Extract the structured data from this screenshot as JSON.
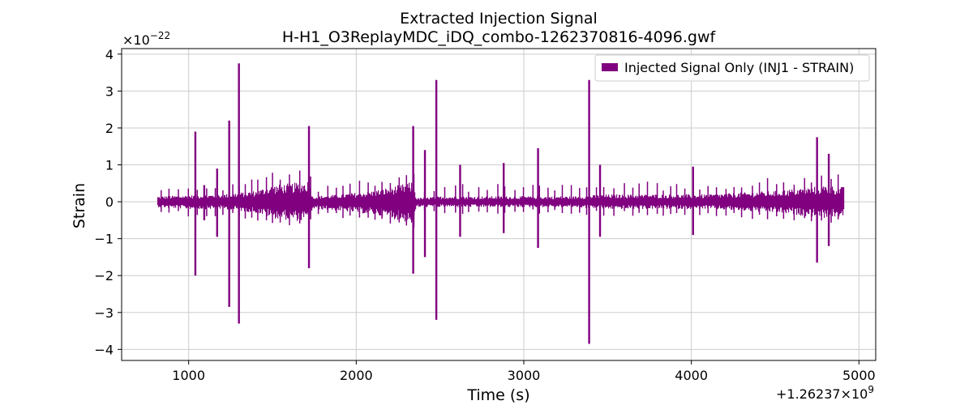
{
  "chart_data": {
    "type": "line",
    "title": "Extracted Injection Signal",
    "subtitle": "H-H1_O3ReplayMDC_iDQ_combo-1262370816-4096.gwf",
    "xlabel": "Time (s)",
    "ylabel": "Strain",
    "x_offset_label": "+1.26237×10",
    "x_offset_exp": "9",
    "y_scale_label": "×10",
    "y_scale_exp": "−22",
    "xlim": [
      600,
      5100
    ],
    "ylim": [
      -4.3,
      4.15
    ],
    "x_ticks": [
      1000,
      2000,
      3000,
      4000,
      5000
    ],
    "x_tick_labels": [
      "1000",
      "2000",
      "3000",
      "4000",
      "5000"
    ],
    "y_ticks": [
      4,
      3,
      2,
      1,
      0,
      -1,
      -2,
      -3,
      -4
    ],
    "y_tick_labels": [
      "4",
      "3",
      "2",
      "1",
      "0",
      "−1",
      "−2",
      "−3",
      "−4"
    ],
    "grid": true,
    "legend_position": "top-right",
    "color": "#800080",
    "series": [
      {
        "name": "Injected Signal Only (INJ1 - STRAIN)",
        "x_range": [
          816,
          4912
        ],
        "envelope": {
          "x": [
            816,
            1000,
            1200,
            1400,
            1500,
            1600,
            1700,
            1718,
            1740,
            1900,
            2000,
            2100,
            2200,
            2300,
            2340,
            2360,
            2500,
            2700,
            2900,
            3100,
            3300,
            3500,
            3700,
            3900,
            4100,
            4300,
            4500,
            4700,
            4800,
            4912
          ],
          "upper": [
            0.15,
            0.18,
            0.2,
            0.3,
            0.45,
            0.5,
            0.55,
            0.6,
            0.15,
            0.2,
            0.25,
            0.3,
            0.4,
            0.5,
            0.55,
            0.1,
            0.15,
            0.15,
            0.15,
            0.15,
            0.15,
            0.2,
            0.2,
            0.2,
            0.2,
            0.25,
            0.3,
            0.4,
            0.45,
            0.4
          ],
          "lower": [
            -0.15,
            -0.2,
            -0.2,
            -0.3,
            -0.45,
            -0.5,
            -0.55,
            -0.6,
            -0.2,
            -0.25,
            -0.3,
            -0.35,
            -0.45,
            -0.55,
            -0.6,
            -0.15,
            -0.15,
            -0.15,
            -0.15,
            -0.15,
            -0.15,
            -0.2,
            -0.2,
            -0.2,
            -0.2,
            -0.25,
            -0.3,
            -0.4,
            -0.45,
            -0.4
          ]
        },
        "spikes": [
          {
            "x": 1040,
            "max": 1.9,
            "min": -2.0
          },
          {
            "x": 1093,
            "max": 0.45,
            "min": -0.5
          },
          {
            "x": 1170,
            "max": 0.9,
            "min": -0.95
          },
          {
            "x": 1242,
            "max": 2.2,
            "min": -2.85
          },
          {
            "x": 1300,
            "max": 3.75,
            "min": -3.3
          },
          {
            "x": 1718,
            "max": 2.05,
            "min": -1.8
          },
          {
            "x": 2340,
            "max": 2.05,
            "min": -1.95
          },
          {
            "x": 2410,
            "max": 1.4,
            "min": -1.5
          },
          {
            "x": 2478,
            "max": 3.3,
            "min": -3.2
          },
          {
            "x": 2620,
            "max": 1.0,
            "min": -0.95
          },
          {
            "x": 2880,
            "max": 1.05,
            "min": -0.85
          },
          {
            "x": 3085,
            "max": 1.45,
            "min": -1.25
          },
          {
            "x": 3390,
            "max": 3.3,
            "min": -3.85
          },
          {
            "x": 3455,
            "max": 1.0,
            "min": -0.95
          },
          {
            "x": 4010,
            "max": 0.95,
            "min": -0.9
          },
          {
            "x": 4750,
            "max": 1.75,
            "min": -1.65
          },
          {
            "x": 4820,
            "max": 1.3,
            "min": -1.2
          }
        ]
      }
    ]
  }
}
